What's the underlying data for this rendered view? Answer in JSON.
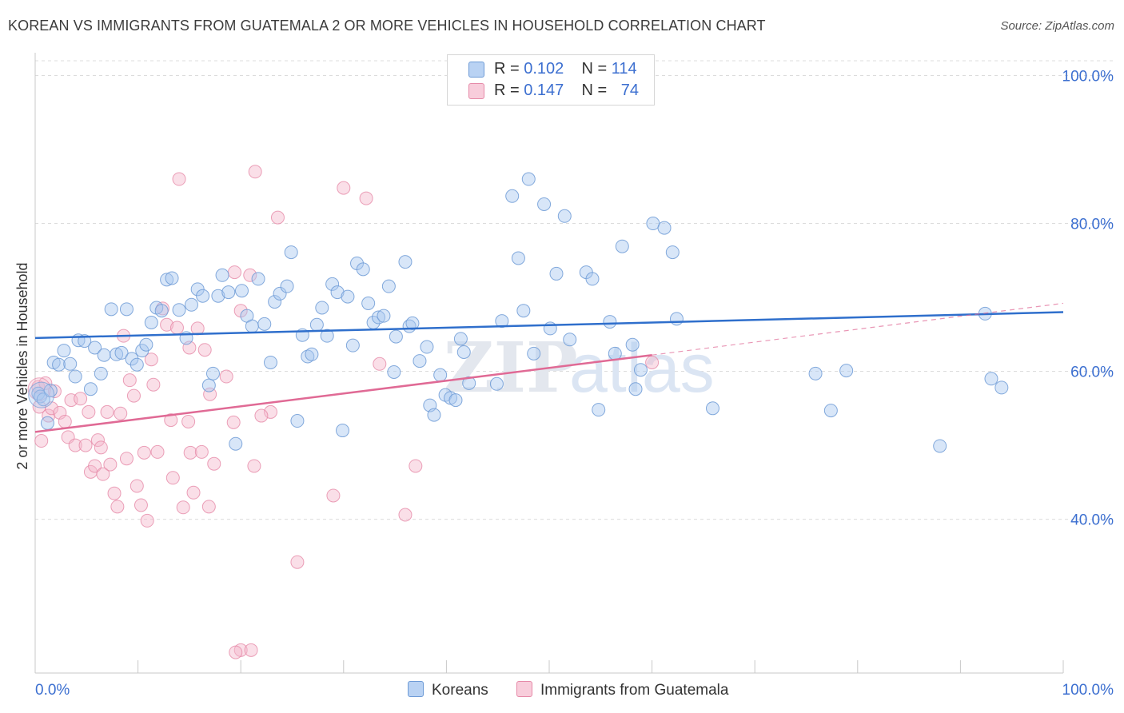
{
  "title": "KOREAN VS IMMIGRANTS FROM GUATEMALA 2 OR MORE VEHICLES IN HOUSEHOLD CORRELATION CHART",
  "source": "Source: ZipAtlas.com",
  "watermark": {
    "part1": "ZIP",
    "part2": "atlas"
  },
  "legend": {
    "rows": [
      {
        "r_label": "R =",
        "r_value": "0.102",
        "n_label": "N =",
        "n_value": "114"
      },
      {
        "r_label": "R =",
        "r_value": "0.147",
        "n_label": "N =",
        "n_value": "74"
      }
    ]
  },
  "bottom_legend": {
    "koreans": "Koreans",
    "guatemala": "Immigrants from Guatemala"
  },
  "colors": {
    "blue_fill": "#a8c8f0",
    "blue_stroke": "#6e9bd6",
    "blue_line": "#2f6fcc",
    "pink_fill": "#f5b8cb",
    "pink_stroke": "#e68aa8",
    "pink_line": "#e06a95",
    "axis_text": "#3c6fd0",
    "grid": "#dcdcdc"
  },
  "chart_data": {
    "type": "scatter",
    "title": "KOREAN VS IMMIGRANTS FROM GUATEMALA 2 OR MORE VEHICLES IN HOUSEHOLD CORRELATION CHART",
    "xlabel": "",
    "ylabel": "2 or more Vehicles in Household",
    "xlim": [
      0,
      100
    ],
    "ylim": [
      19.2,
      102
    ],
    "x_tick_labels": [
      "0.0%",
      "100.0%"
    ],
    "y_ticks": [
      40,
      60,
      80,
      100
    ],
    "y_tick_labels": [
      "40.0%",
      "60.0%",
      "80.0%",
      "100.0%"
    ],
    "grid": true,
    "legend_position": "top-center",
    "series": [
      {
        "name": "Koreans",
        "r": 0.102,
        "n": 114,
        "trend": {
          "x": [
            0,
            100
          ],
          "y": [
            64.5,
            68.0
          ],
          "style": "solid"
        },
        "points": [
          [
            0.3,
            57.0
          ],
          [
            0.5,
            56.6
          ],
          [
            0.8,
            56.2
          ],
          [
            1.2,
            53.0
          ],
          [
            1.5,
            57.4
          ],
          [
            1.8,
            61.2
          ],
          [
            2.3,
            60.9
          ],
          [
            2.8,
            62.8
          ],
          [
            3.4,
            61.0
          ],
          [
            3.9,
            59.3
          ],
          [
            4.2,
            64.2
          ],
          [
            4.8,
            64.1
          ],
          [
            5.4,
            57.6
          ],
          [
            5.8,
            63.2
          ],
          [
            6.4,
            59.7
          ],
          [
            6.7,
            62.2
          ],
          [
            7.4,
            68.4
          ],
          [
            7.9,
            62.3
          ],
          [
            8.4,
            62.5
          ],
          [
            8.9,
            68.4
          ],
          [
            9.4,
            61.7
          ],
          [
            9.9,
            60.9
          ],
          [
            10.4,
            62.8
          ],
          [
            10.8,
            63.6
          ],
          [
            11.3,
            66.6
          ],
          [
            11.8,
            68.6
          ],
          [
            12.3,
            68.2
          ],
          [
            12.8,
            72.4
          ],
          [
            13.3,
            72.6
          ],
          [
            14.0,
            68.3
          ],
          [
            14.7,
            64.5
          ],
          [
            15.2,
            69.0
          ],
          [
            15.8,
            71.1
          ],
          [
            16.3,
            70.2
          ],
          [
            16.9,
            58.1
          ],
          [
            17.3,
            59.7
          ],
          [
            17.8,
            70.2
          ],
          [
            18.2,
            73.0
          ],
          [
            18.8,
            70.7
          ],
          [
            19.5,
            50.2
          ],
          [
            20.1,
            70.9
          ],
          [
            20.6,
            67.5
          ],
          [
            21.1,
            66.1
          ],
          [
            21.7,
            72.5
          ],
          [
            22.3,
            66.4
          ],
          [
            22.9,
            61.2
          ],
          [
            23.3,
            69.4
          ],
          [
            23.8,
            70.5
          ],
          [
            24.5,
            71.5
          ],
          [
            24.9,
            76.1
          ],
          [
            25.5,
            53.3
          ],
          [
            26.0,
            64.9
          ],
          [
            26.5,
            62.0
          ],
          [
            26.9,
            62.3
          ],
          [
            27.4,
            66.3
          ],
          [
            27.9,
            68.6
          ],
          [
            28.4,
            64.8
          ],
          [
            28.9,
            71.8
          ],
          [
            29.4,
            70.7
          ],
          [
            29.9,
            52.0
          ],
          [
            30.4,
            70.1
          ],
          [
            30.9,
            63.5
          ],
          [
            31.3,
            74.6
          ],
          [
            31.9,
            73.8
          ],
          [
            32.4,
            69.2
          ],
          [
            32.9,
            66.6
          ],
          [
            33.4,
            67.3
          ],
          [
            33.9,
            67.5
          ],
          [
            34.4,
            71.5
          ],
          [
            34.9,
            59.9
          ],
          [
            35.1,
            64.7
          ],
          [
            36.0,
            74.8
          ],
          [
            36.4,
            66.1
          ],
          [
            36.7,
            66.5
          ],
          [
            37.4,
            61.4
          ],
          [
            38.1,
            63.3
          ],
          [
            38.4,
            55.4
          ],
          [
            38.8,
            54.1
          ],
          [
            39.4,
            59.5
          ],
          [
            39.9,
            56.8
          ],
          [
            40.4,
            56.4
          ],
          [
            40.9,
            56.1
          ],
          [
            41.4,
            64.4
          ],
          [
            41.7,
            62.6
          ],
          [
            42.2,
            58.4
          ],
          [
            44.9,
            58.3
          ],
          [
            45.4,
            66.8
          ],
          [
            46.4,
            83.7
          ],
          [
            47.0,
            75.3
          ],
          [
            47.5,
            68.2
          ],
          [
            48.0,
            86.0
          ],
          [
            48.5,
            62.4
          ],
          [
            49.5,
            82.6
          ],
          [
            50.1,
            65.8
          ],
          [
            50.7,
            73.2
          ],
          [
            51.5,
            81.0
          ],
          [
            52.0,
            64.3
          ],
          [
            53.6,
            73.4
          ],
          [
            54.2,
            72.5
          ],
          [
            54.8,
            54.8
          ],
          [
            55.9,
            66.7
          ],
          [
            56.4,
            62.4
          ],
          [
            57.1,
            76.9
          ],
          [
            58.1,
            63.6
          ],
          [
            58.4,
            57.6
          ],
          [
            58.9,
            60.2
          ],
          [
            60.1,
            80.0
          ],
          [
            61.2,
            79.4
          ],
          [
            62.0,
            76.1
          ],
          [
            62.4,
            67.1
          ],
          [
            65.9,
            55.0
          ],
          [
            75.9,
            59.7
          ],
          [
            77.4,
            54.7
          ],
          [
            78.9,
            60.1
          ],
          [
            88.0,
            49.9
          ],
          [
            92.4,
            67.8
          ],
          [
            93.0,
            59.0
          ],
          [
            94.0,
            57.8
          ]
        ]
      },
      {
        "name": "Immigrants from Guatemala",
        "r": 0.147,
        "n": 74,
        "trend": {
          "x": [
            0,
            60
          ],
          "y": [
            51.8,
            62.2
          ],
          "style": "solid",
          "dashed_extension": {
            "x": [
              60,
              100
            ],
            "y": [
              62.2,
              69.2
            ]
          }
        },
        "points": [
          [
            0.3,
            57.9
          ],
          [
            0.4,
            55.2
          ],
          [
            0.6,
            50.6
          ],
          [
            1.0,
            58.4
          ],
          [
            1.3,
            54.0
          ],
          [
            1.6,
            55.0
          ],
          [
            1.9,
            57.3
          ],
          [
            2.4,
            54.4
          ],
          [
            2.9,
            53.2
          ],
          [
            3.2,
            51.1
          ],
          [
            3.5,
            56.1
          ],
          [
            3.9,
            50.0
          ],
          [
            4.4,
            56.3
          ],
          [
            4.9,
            50.0
          ],
          [
            5.2,
            54.5
          ],
          [
            5.4,
            46.4
          ],
          [
            5.8,
            47.2
          ],
          [
            6.1,
            50.7
          ],
          [
            6.4,
            49.7
          ],
          [
            6.6,
            46.1
          ],
          [
            7.0,
            54.5
          ],
          [
            7.3,
            47.4
          ],
          [
            7.7,
            43.5
          ],
          [
            8.0,
            41.7
          ],
          [
            8.3,
            54.3
          ],
          [
            8.6,
            64.8
          ],
          [
            8.9,
            48.2
          ],
          [
            9.2,
            58.8
          ],
          [
            9.6,
            56.7
          ],
          [
            9.9,
            44.5
          ],
          [
            10.3,
            41.9
          ],
          [
            10.6,
            49.0
          ],
          [
            10.9,
            39.8
          ],
          [
            11.3,
            61.6
          ],
          [
            11.5,
            58.2
          ],
          [
            11.9,
            49.1
          ],
          [
            12.4,
            68.5
          ],
          [
            12.8,
            66.3
          ],
          [
            13.2,
            53.4
          ],
          [
            13.4,
            45.6
          ],
          [
            13.8,
            65.9
          ],
          [
            14.0,
            86.0
          ],
          [
            14.4,
            41.6
          ],
          [
            14.9,
            53.2
          ],
          [
            15.0,
            63.2
          ],
          [
            15.1,
            49.0
          ],
          [
            15.4,
            43.6
          ],
          [
            15.8,
            65.8
          ],
          [
            16.2,
            49.1
          ],
          [
            16.5,
            62.9
          ],
          [
            16.9,
            41.7
          ],
          [
            17.0,
            56.9
          ],
          [
            17.4,
            47.5
          ],
          [
            18.6,
            59.3
          ],
          [
            19.3,
            53.1
          ],
          [
            19.4,
            73.4
          ],
          [
            20.0,
            68.2
          ],
          [
            20.9,
            73.0
          ],
          [
            21.3,
            47.2
          ],
          [
            21.4,
            87.0
          ],
          [
            22.9,
            54.5
          ],
          [
            23.6,
            80.8
          ],
          [
            25.5,
            34.2
          ],
          [
            29.0,
            43.2
          ],
          [
            30.0,
            84.8
          ],
          [
            32.2,
            83.4
          ],
          [
            33.5,
            61.0
          ],
          [
            36.0,
            40.6
          ],
          [
            37.0,
            47.2
          ],
          [
            20.0,
            22.3
          ],
          [
            21.0,
            22.3
          ],
          [
            19.5,
            22.0
          ],
          [
            60.0,
            61.2
          ],
          [
            22.0,
            54.0
          ]
        ]
      }
    ]
  }
}
